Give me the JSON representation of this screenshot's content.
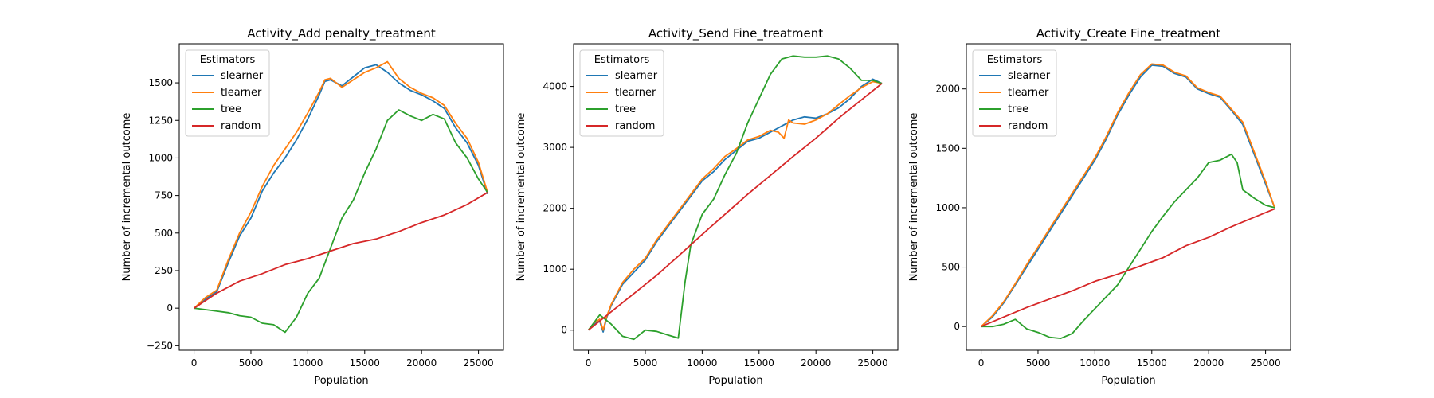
{
  "colors": {
    "slearner": "#1f77b4",
    "tlearner": "#ff7f0e",
    "tree": "#2ca02c",
    "random": "#d62728"
  },
  "chart_data": [
    {
      "type": "line",
      "title": "Activity_Add penalty_treatment",
      "xlabel": "Population",
      "ylabel": "Number of incremental outcome",
      "xlim": [
        -1300,
        27200
      ],
      "ylim": [
        -280,
        1760
      ],
      "xticks": [
        0,
        5000,
        10000,
        15000,
        20000,
        25000
      ],
      "yticks": [
        -250,
        0,
        250,
        500,
        750,
        1000,
        1250,
        1500
      ],
      "legend": {
        "title": "Estimators",
        "position": "upper-left",
        "entries": [
          "slearner",
          "tlearner",
          "tree",
          "random"
        ]
      },
      "series": [
        {
          "name": "slearner",
          "x": [
            0,
            1000,
            2000,
            3000,
            4000,
            5000,
            6000,
            7000,
            8000,
            9000,
            10000,
            11000,
            11500,
            12000,
            13000,
            14000,
            15000,
            16000,
            17000,
            18000,
            19000,
            20000,
            21000,
            22000,
            23000,
            24000,
            25000,
            25800
          ],
          "y": [
            0,
            60,
            110,
            300,
            480,
            600,
            780,
            900,
            1000,
            1120,
            1260,
            1420,
            1510,
            1520,
            1480,
            1540,
            1600,
            1620,
            1570,
            1500,
            1450,
            1420,
            1380,
            1330,
            1200,
            1100,
            950,
            760
          ]
        },
        {
          "name": "tlearner",
          "x": [
            0,
            1000,
            2000,
            3000,
            4000,
            5000,
            6000,
            7000,
            8000,
            9000,
            10000,
            11000,
            11500,
            12000,
            13000,
            14000,
            15000,
            16000,
            17000,
            18000,
            19000,
            20000,
            21000,
            22000,
            23000,
            24000,
            25000,
            25800
          ],
          "y": [
            0,
            70,
            120,
            320,
            500,
            640,
            810,
            950,
            1060,
            1170,
            1300,
            1440,
            1520,
            1530,
            1470,
            1520,
            1570,
            1600,
            1640,
            1530,
            1470,
            1430,
            1400,
            1350,
            1230,
            1130,
            970,
            770
          ]
        },
        {
          "name": "tree",
          "x": [
            0,
            1000,
            2000,
            3000,
            4000,
            5000,
            6000,
            7000,
            8000,
            9000,
            10000,
            11000,
            12000,
            13000,
            14000,
            15000,
            16000,
            17000,
            18000,
            19000,
            20000,
            21000,
            22000,
            23000,
            24000,
            25000,
            25800
          ],
          "y": [
            0,
            -10,
            -20,
            -30,
            -50,
            -60,
            -100,
            -110,
            -160,
            -60,
            100,
            200,
            400,
            600,
            720,
            900,
            1060,
            1250,
            1320,
            1280,
            1250,
            1290,
            1260,
            1100,
            1000,
            860,
            770
          ]
        },
        {
          "name": "random",
          "x": [
            0,
            2000,
            4000,
            6000,
            8000,
            10000,
            12000,
            14000,
            16000,
            18000,
            20000,
            22000,
            24000,
            25800
          ],
          "y": [
            0,
            100,
            180,
            230,
            290,
            330,
            380,
            430,
            460,
            510,
            570,
            620,
            690,
            770
          ]
        }
      ]
    },
    {
      "type": "line",
      "title": "Activity_Send Fine_treatment",
      "xlabel": "Population",
      "ylabel": "Number of incremental outcome",
      "xlim": [
        -1300,
        27200
      ],
      "ylim": [
        -330,
        4700
      ],
      "xticks": [
        0,
        5000,
        10000,
        15000,
        20000,
        25000
      ],
      "yticks": [
        0,
        1000,
        2000,
        3000,
        4000
      ],
      "legend": {
        "title": "Estimators",
        "position": "upper-left",
        "entries": [
          "slearner",
          "tlearner",
          "tree",
          "random"
        ]
      },
      "series": [
        {
          "name": "slearner",
          "x": [
            0,
            500,
            1000,
            1300,
            1600,
            2000,
            3000,
            4000,
            5000,
            6000,
            7000,
            8000,
            9000,
            10000,
            11000,
            12000,
            13000,
            14000,
            15000,
            16000,
            17000,
            18000,
            19000,
            20000,
            21000,
            22000,
            23000,
            24000,
            25000,
            25800
          ],
          "y": [
            0,
            100,
            150,
            -30,
            200,
            400,
            750,
            950,
            1150,
            1450,
            1700,
            1950,
            2200,
            2450,
            2600,
            2800,
            2950,
            3100,
            3150,
            3250,
            3350,
            3450,
            3500,
            3480,
            3550,
            3650,
            3800,
            4000,
            4120,
            4050
          ]
        },
        {
          "name": "tlearner",
          "x": [
            0,
            500,
            1000,
            1300,
            1600,
            2000,
            3000,
            4000,
            5000,
            6000,
            7000,
            8000,
            9000,
            10000,
            11000,
            12000,
            13000,
            14000,
            15000,
            16000,
            16700,
            17200,
            17600,
            18000,
            19000,
            20000,
            21000,
            22000,
            23000,
            24000,
            25000,
            25800
          ],
          "y": [
            0,
            120,
            180,
            0,
            220,
            420,
            780,
            1000,
            1180,
            1480,
            1730,
            1980,
            2230,
            2480,
            2650,
            2850,
            2980,
            3120,
            3180,
            3280,
            3250,
            3150,
            3450,
            3400,
            3380,
            3450,
            3550,
            3700,
            3850,
            3980,
            4080,
            4050
          ]
        },
        {
          "name": "tree",
          "x": [
            0,
            1000,
            2000,
            3000,
            4000,
            5000,
            6000,
            7000,
            7900,
            8500,
            9000,
            10000,
            11000,
            12000,
            13000,
            14000,
            15000,
            16000,
            17000,
            18000,
            19000,
            20000,
            21000,
            22000,
            23000,
            24000,
            25000,
            25800
          ],
          "y": [
            0,
            250,
            100,
            -100,
            -150,
            0,
            -20,
            -80,
            -130,
            800,
            1400,
            1900,
            2150,
            2550,
            2900,
            3400,
            3800,
            4200,
            4450,
            4500,
            4480,
            4480,
            4500,
            4450,
            4300,
            4100,
            4100,
            4050
          ]
        },
        {
          "name": "random",
          "x": [
            0,
            2000,
            4000,
            6000,
            8000,
            10000,
            12000,
            14000,
            16000,
            18000,
            20000,
            22000,
            24000,
            25800
          ],
          "y": [
            0,
            300,
            600,
            900,
            1230,
            1570,
            1900,
            2230,
            2540,
            2850,
            3150,
            3480,
            3780,
            4050
          ]
        }
      ]
    },
    {
      "type": "line",
      "title": "Activity_Create Fine_treatment",
      "xlabel": "Population",
      "ylabel": "Number of incremental outcome",
      "xlim": [
        -1300,
        27200
      ],
      "ylim": [
        -200,
        2380
      ],
      "xticks": [
        0,
        5000,
        10000,
        15000,
        20000,
        25000
      ],
      "yticks": [
        0,
        500,
        1000,
        1500,
        2000
      ],
      "legend": {
        "title": "Estimators",
        "position": "upper-left",
        "entries": [
          "slearner",
          "tlearner",
          "tree",
          "random"
        ]
      },
      "series": [
        {
          "name": "slearner",
          "x": [
            0,
            1000,
            2000,
            3000,
            4000,
            5000,
            6000,
            7000,
            8000,
            9000,
            10000,
            11000,
            12000,
            13000,
            14000,
            15000,
            16000,
            17000,
            18000,
            19000,
            20000,
            21000,
            22000,
            23000,
            24000,
            25000,
            25800
          ],
          "y": [
            0,
            80,
            200,
            350,
            500,
            650,
            800,
            950,
            1100,
            1250,
            1400,
            1580,
            1780,
            1950,
            2100,
            2200,
            2190,
            2130,
            2100,
            2000,
            1960,
            1930,
            1820,
            1700,
            1450,
            1200,
            1000
          ]
        },
        {
          "name": "tlearner",
          "x": [
            0,
            1000,
            2000,
            3000,
            4000,
            5000,
            6000,
            7000,
            8000,
            9000,
            10000,
            11000,
            12000,
            13000,
            14000,
            15000,
            16000,
            17000,
            18000,
            19000,
            20000,
            21000,
            22000,
            23000,
            24000,
            25000,
            25800
          ],
          "y": [
            0,
            90,
            210,
            360,
            520,
            670,
            820,
            970,
            1120,
            1270,
            1420,
            1600,
            1800,
            1970,
            2120,
            2210,
            2200,
            2140,
            2110,
            2010,
            1970,
            1940,
            1830,
            1720,
            1470,
            1220,
            1000
          ]
        },
        {
          "name": "tree",
          "x": [
            0,
            1000,
            2000,
            3000,
            4000,
            5000,
            6000,
            7000,
            8000,
            9000,
            10000,
            11000,
            12000,
            13000,
            14000,
            15000,
            16000,
            17000,
            18000,
            19000,
            20000,
            21000,
            22000,
            22500,
            23000,
            24000,
            25000,
            25800
          ],
          "y": [
            0,
            0,
            20,
            60,
            -20,
            -50,
            -90,
            -100,
            -60,
            50,
            150,
            250,
            350,
            500,
            650,
            800,
            930,
            1050,
            1150,
            1250,
            1380,
            1400,
            1450,
            1380,
            1150,
            1080,
            1020,
            1000
          ]
        },
        {
          "name": "random",
          "x": [
            0,
            2000,
            4000,
            6000,
            8000,
            10000,
            12000,
            14000,
            16000,
            18000,
            20000,
            22000,
            24000,
            25800
          ],
          "y": [
            0,
            80,
            160,
            230,
            300,
            380,
            440,
            510,
            580,
            680,
            750,
            840,
            920,
            990
          ]
        }
      ]
    }
  ]
}
